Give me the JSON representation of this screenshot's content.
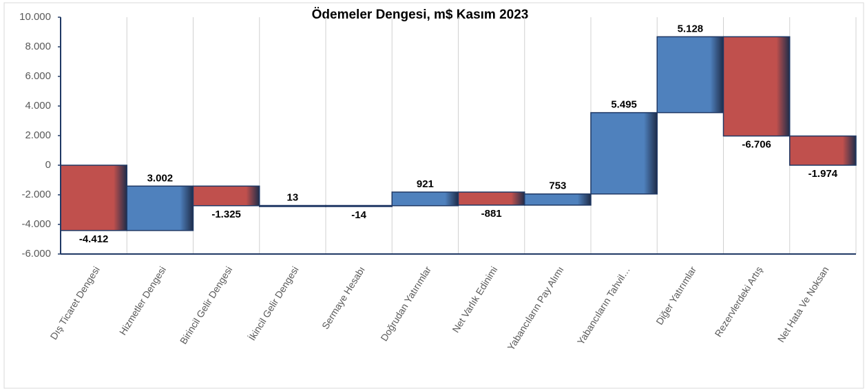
{
  "chart_data": {
    "type": "waterfall",
    "title": "Ödemeler Dengesi, m$ Kasım 2023",
    "categories": [
      "Dış Ticaret Dengesi",
      "Hizmetler Dengesi",
      "Birincil Gelir Dengesi",
      "İkincil Gelir Dengesi",
      "Sermaye Hesabı",
      "Doğrudan Yatırımlar",
      "Net Varlık Edinimi",
      "Yabancıların Pay Alımı",
      "Yabancıların Tahvil…",
      "Diğer Yatırımlar",
      "Rezervlerdeki Artış",
      "Net Hata Ve Noksan"
    ],
    "values": [
      -4412,
      3002,
      -1325,
      13,
      -14,
      921,
      -881,
      753,
      5495,
      5128,
      -6706,
      -1974
    ],
    "value_labels": [
      "-4.412",
      "3.002",
      "-1.325",
      "13",
      "-14",
      "921",
      "-881",
      "753",
      "5.495",
      "5.128",
      "-6.706",
      "-1.974"
    ],
    "positive_color": "#4f81bd",
    "negative_color": "#c0504d",
    "ylim": [
      -6000,
      10000
    ],
    "yticks": [
      {
        "value": -6000,
        "label": "-6.000"
      },
      {
        "value": -4000,
        "label": "-4.000"
      },
      {
        "value": -2000,
        "label": "-2.000"
      },
      0,
      {
        "value": 2000,
        "label": "2.000"
      },
      {
        "value": 4000,
        "label": "4.000"
      },
      {
        "value": 6000,
        "label": "6.000"
      },
      {
        "value": 8000,
        "label": "8.000"
      },
      {
        "value": 10000,
        "label": "10.000"
      }
    ]
  }
}
